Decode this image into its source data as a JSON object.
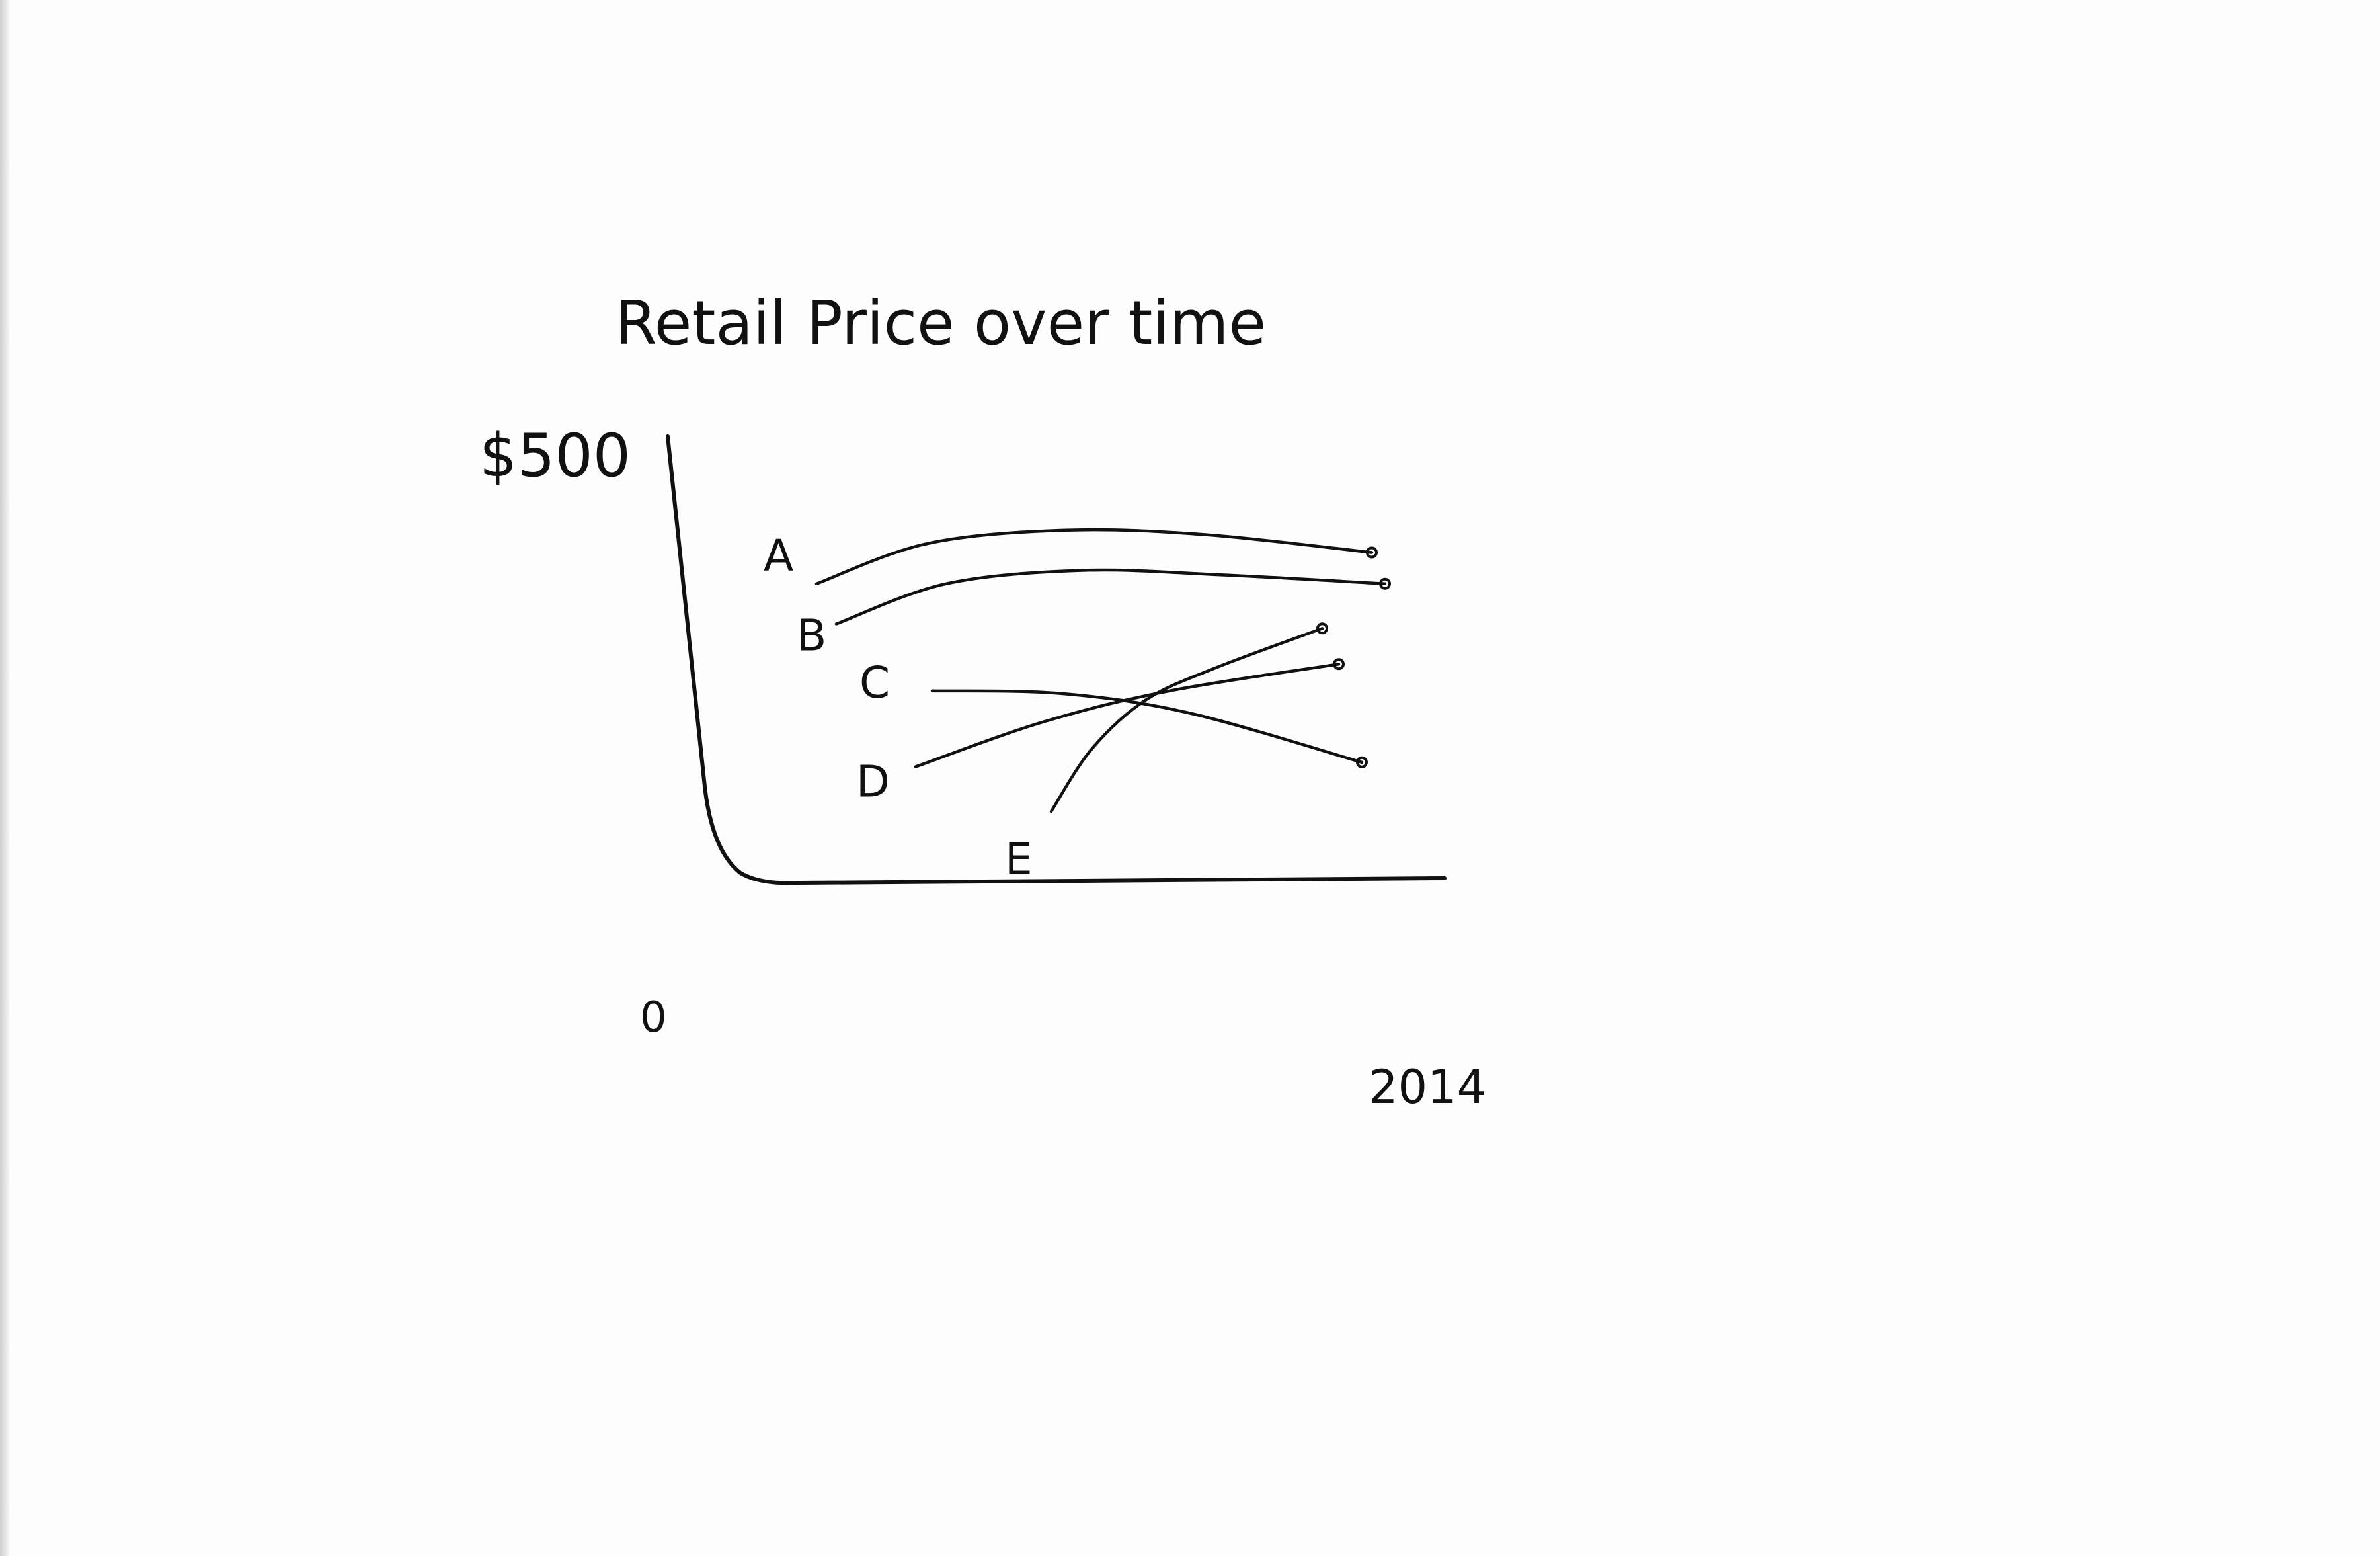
{
  "chart_data": {
    "type": "line",
    "title": "Retail Price over time",
    "xlabel": "",
    "ylabel": "",
    "x_tick_labels": [
      "2014"
    ],
    "y_tick_labels": [
      "0",
      "$500"
    ],
    "ylim": [
      0,
      500
    ],
    "grid": false,
    "legend": "none",
    "series": [
      {
        "name": "A",
        "label_position": "start",
        "values": [
          [
            0,
            335
          ],
          [
            0.2,
            380
          ],
          [
            0.45,
            395
          ],
          [
            0.7,
            390
          ],
          [
            1,
            370
          ]
        ]
      },
      {
        "name": "B",
        "label_position": "start",
        "values": [
          [
            0,
            290
          ],
          [
            0.2,
            335
          ],
          [
            0.45,
            350
          ],
          [
            0.7,
            345
          ],
          [
            1,
            335
          ]
        ]
      },
      {
        "name": "C",
        "label_position": "start",
        "values": [
          [
            0,
            215
          ],
          [
            0.3,
            212
          ],
          [
            0.6,
            190
          ],
          [
            1,
            135
          ]
        ]
      },
      {
        "name": "D",
        "label_position": "start",
        "values": [
          [
            0,
            130
          ],
          [
            0.3,
            180
          ],
          [
            0.6,
            215
          ],
          [
            1,
            245
          ]
        ]
      },
      {
        "name": "E",
        "label_position": "start",
        "values": [
          [
            0,
            80
          ],
          [
            0.15,
            150
          ],
          [
            0.35,
            205
          ],
          [
            0.6,
            240
          ],
          [
            1,
            285
          ]
        ]
      }
    ],
    "colors": {
      "ink": "#111111",
      "paper": "#fdfdfd"
    }
  }
}
